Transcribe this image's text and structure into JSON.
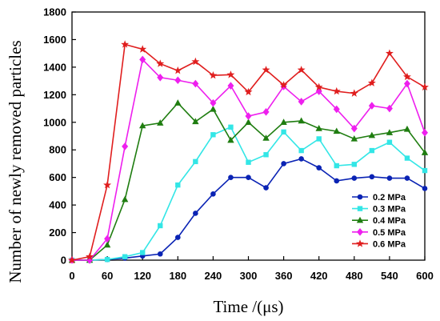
{
  "chart_data": {
    "type": "line",
    "title": "",
    "xlabel": "Time /(μs)",
    "ylabel": "Number of newly removed particles",
    "xlim": [
      0,
      600
    ],
    "ylim": [
      0,
      1800
    ],
    "xticks": [
      0,
      60,
      120,
      180,
      240,
      300,
      360,
      420,
      480,
      540,
      600
    ],
    "yticks": [
      0,
      200,
      400,
      600,
      800,
      1000,
      1200,
      1400,
      1600,
      1800
    ],
    "grid": false,
    "legend_position": "bottom-right",
    "x": [
      0,
      30,
      60,
      90,
      120,
      150,
      180,
      210,
      240,
      270,
      300,
      330,
      360,
      390,
      420,
      450,
      480,
      510,
      540,
      570,
      600
    ],
    "series": [
      {
        "name": "0.2 MPa",
        "color": "#0a23b4",
        "marker": "circle",
        "values": [
          0,
          0,
          5,
          15,
          30,
          45,
          165,
          340,
          480,
          600,
          600,
          525,
          700,
          735,
          670,
          575,
          595,
          605,
          595,
          595,
          520
        ]
      },
      {
        "name": "0.3 MPa",
        "color": "#33e6e6",
        "marker": "square",
        "values": [
          0,
          0,
          5,
          25,
          55,
          250,
          545,
          715,
          910,
          965,
          710,
          765,
          930,
          795,
          880,
          685,
          695,
          795,
          855,
          740,
          650
        ]
      },
      {
        "name": "0.4 MPa",
        "color": "#1f7d10",
        "marker": "triangle",
        "values": [
          0,
          0,
          110,
          440,
          975,
          995,
          1140,
          1005,
          1095,
          870,
          1000,
          885,
          1000,
          1010,
          955,
          935,
          880,
          905,
          925,
          950,
          780
        ]
      },
      {
        "name": "0.5 MPa",
        "color": "#ee1fee",
        "marker": "diamond",
        "values": [
          0,
          0,
          155,
          825,
          1455,
          1325,
          1305,
          1280,
          1140,
          1265,
          1045,
          1075,
          1260,
          1150,
          1225,
          1095,
          955,
          1120,
          1100,
          1280,
          925
        ]
      },
      {
        "name": "0.6 MPa",
        "color": "#e01e1e",
        "marker": "star",
        "values": [
          0,
          25,
          545,
          1565,
          1530,
          1425,
          1375,
          1440,
          1340,
          1345,
          1220,
          1380,
          1270,
          1380,
          1255,
          1225,
          1210,
          1285,
          1500,
          1330,
          1255
        ]
      }
    ]
  }
}
